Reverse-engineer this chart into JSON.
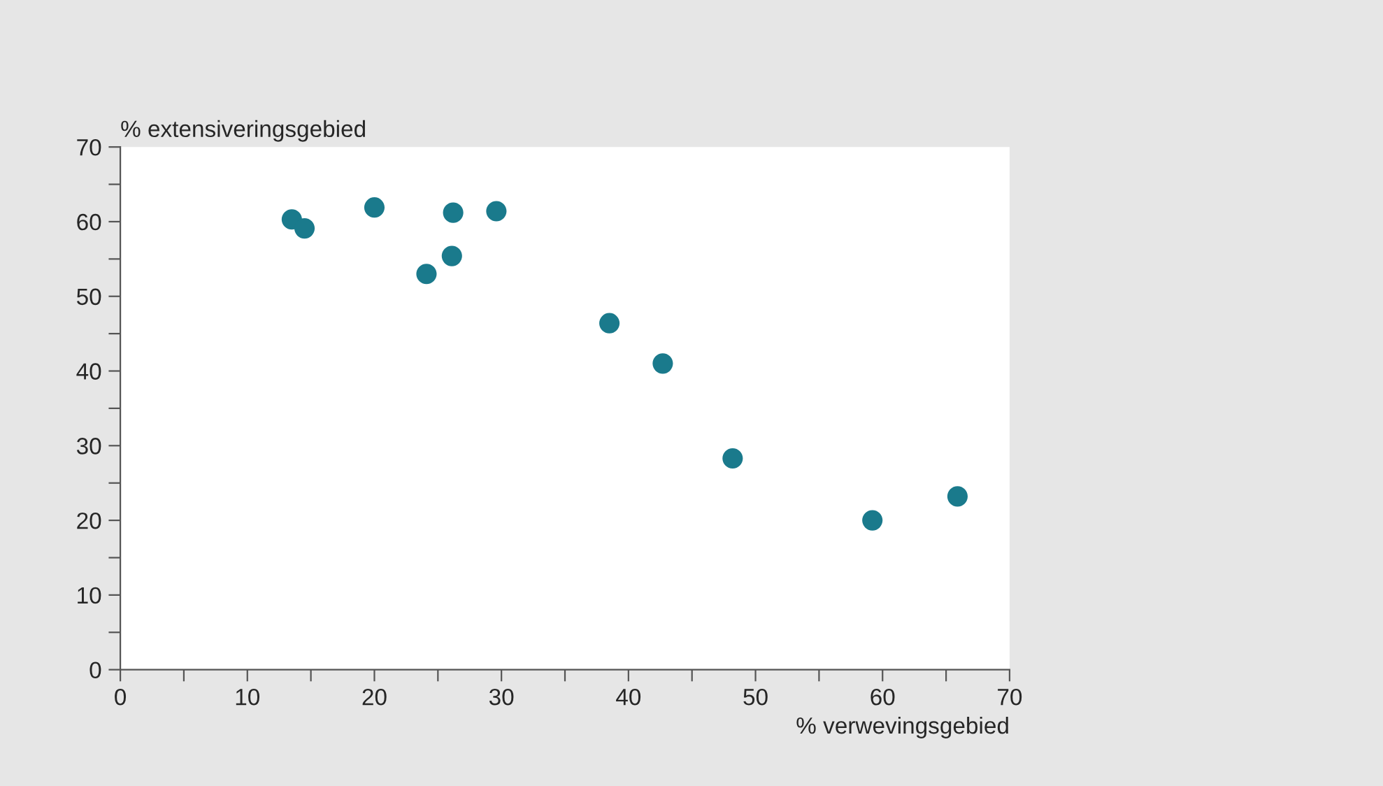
{
  "chart_data": {
    "type": "scatter",
    "xlabel": "% verwevingsgebied",
    "ylabel": "% extensiveringsgebied",
    "x": [
      13.5,
      14.5,
      20.0,
      26.2,
      29.6,
      24.1,
      26.1,
      38.5,
      42.7,
      48.2,
      59.2,
      65.9
    ],
    "series": [
      {
        "color": "#1a7a8c",
        "values": [
          60.3,
          59.1,
          61.9,
          61.2,
          61.4,
          53.0,
          55.4,
          46.4,
          41.0,
          28.3,
          20.0,
          23.2
        ]
      }
    ],
    "xlim": [
      0,
      70
    ],
    "ylim": [
      0,
      70
    ],
    "xticks": [
      0,
      {
        "value": 5,
        "label": null
      },
      10,
      {
        "value": 15,
        "label": null
      },
      20,
      {
        "value": 25,
        "label": null
      },
      30,
      {
        "value": 35,
        "label": null
      },
      40,
      {
        "value": 45,
        "label": null
      },
      50,
      {
        "value": 55,
        "label": null
      },
      60,
      {
        "value": 65,
        "label": null
      },
      70
    ],
    "yticks": [
      0,
      {
        "value": 5,
        "label": null
      },
      10,
      {
        "value": 15,
        "label": null
      },
      20,
      {
        "value": 25,
        "label": null
      },
      30,
      {
        "value": 35,
        "label": null
      },
      40,
      {
        "value": 45,
        "label": null
      },
      50,
      {
        "value": 55,
        "label": null
      },
      60,
      {
        "value": 65,
        "label": null
      },
      70
    ],
    "marker": "circle",
    "grid": false
  }
}
